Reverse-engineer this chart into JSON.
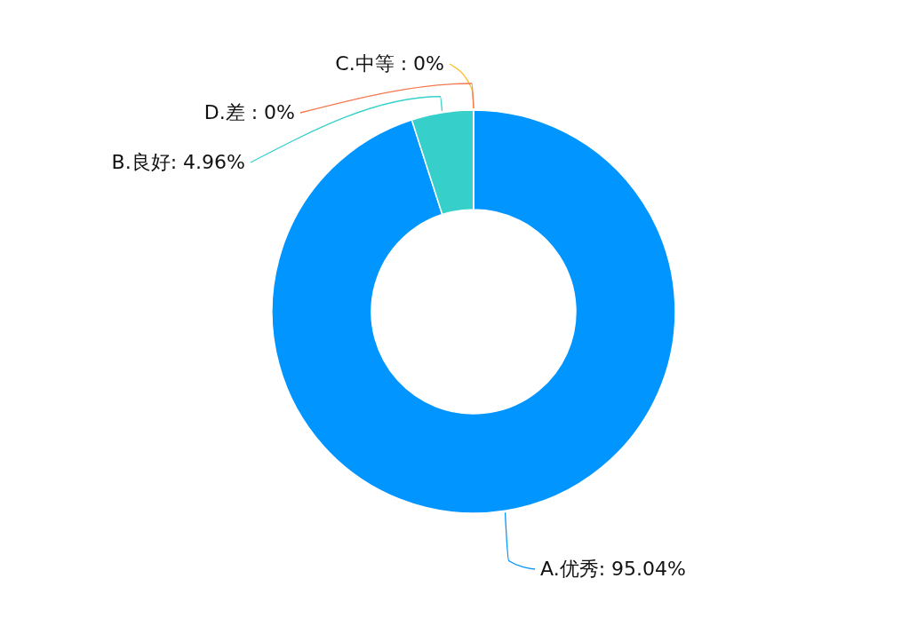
{
  "chart_data": {
    "type": "donut",
    "categories": [
      "A.优秀",
      "B.良好",
      "C.中等",
      "D.差"
    ],
    "values": [
      95.04,
      4.96,
      0,
      0
    ],
    "value_labels": [
      ": 95.04%",
      ": 4.96%",
      " : 0%",
      " : 0%"
    ],
    "colors": [
      "#0095ff",
      "#36cfc9",
      "#fbc02d",
      "#f5784e"
    ]
  }
}
